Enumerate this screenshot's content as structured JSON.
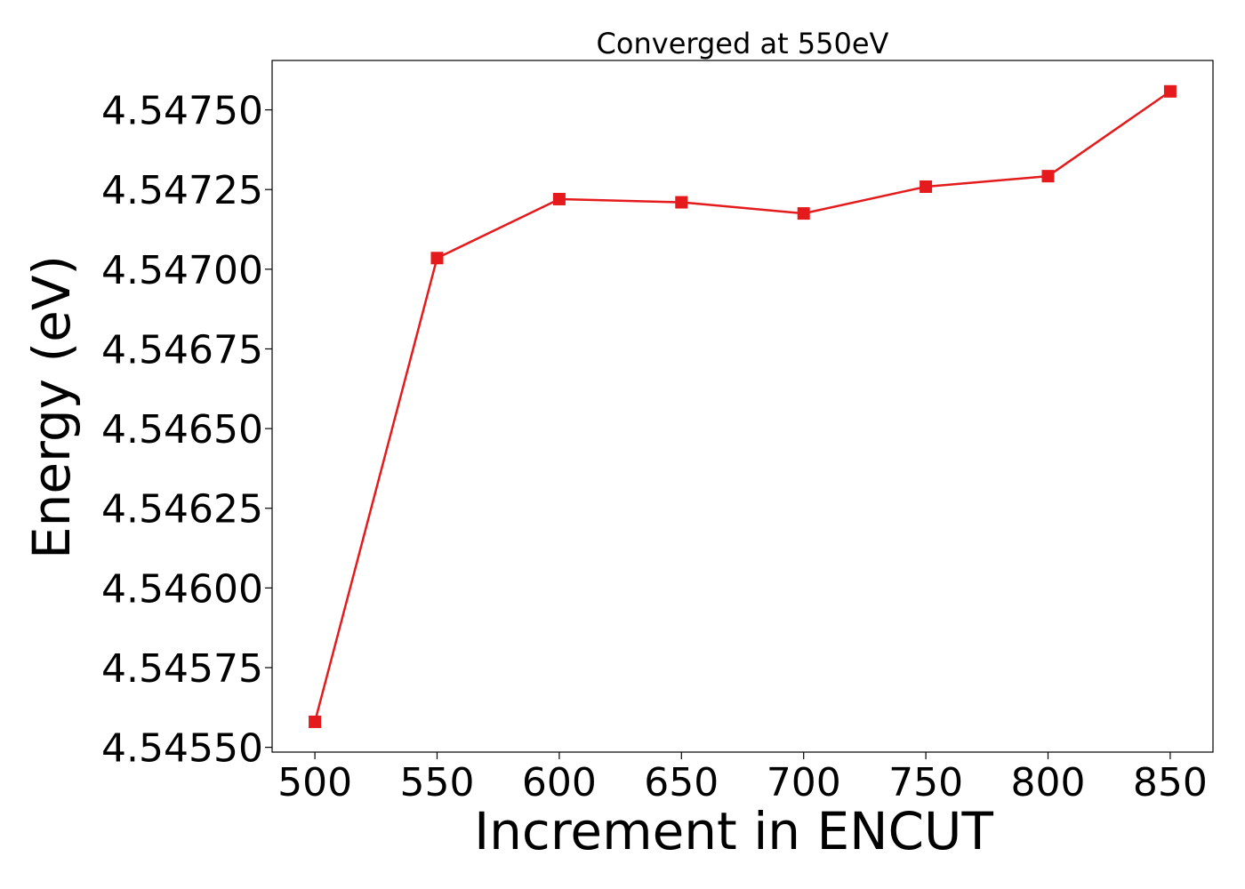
{
  "chart_data": {
    "type": "line",
    "title": "Converged at 550eV",
    "xlabel": "Increment in ENCUT",
    "ylabel": "Energy (eV)",
    "x": [
      500,
      550,
      600,
      650,
      700,
      750,
      800,
      850
    ],
    "series": [
      {
        "values": [
          4.54558,
          4.547035,
          4.54722,
          4.54721,
          4.547175,
          4.547259,
          4.547292,
          4.547558
        ],
        "color": "#e41a1c",
        "marker": "square"
      }
    ],
    "xticks": [
      "500",
      "550",
      "600",
      "650",
      "700",
      "750",
      "800",
      "850"
    ],
    "yticks": [
      "4.54550",
      "4.54575",
      "4.54600",
      "4.54625",
      "4.54650",
      "4.54675",
      "4.54700",
      "4.54725",
      "4.54750"
    ],
    "xlim": [
      482.5,
      867.5
    ],
    "ylim": [
      4.545485,
      4.547655
    ],
    "grid": false
  }
}
